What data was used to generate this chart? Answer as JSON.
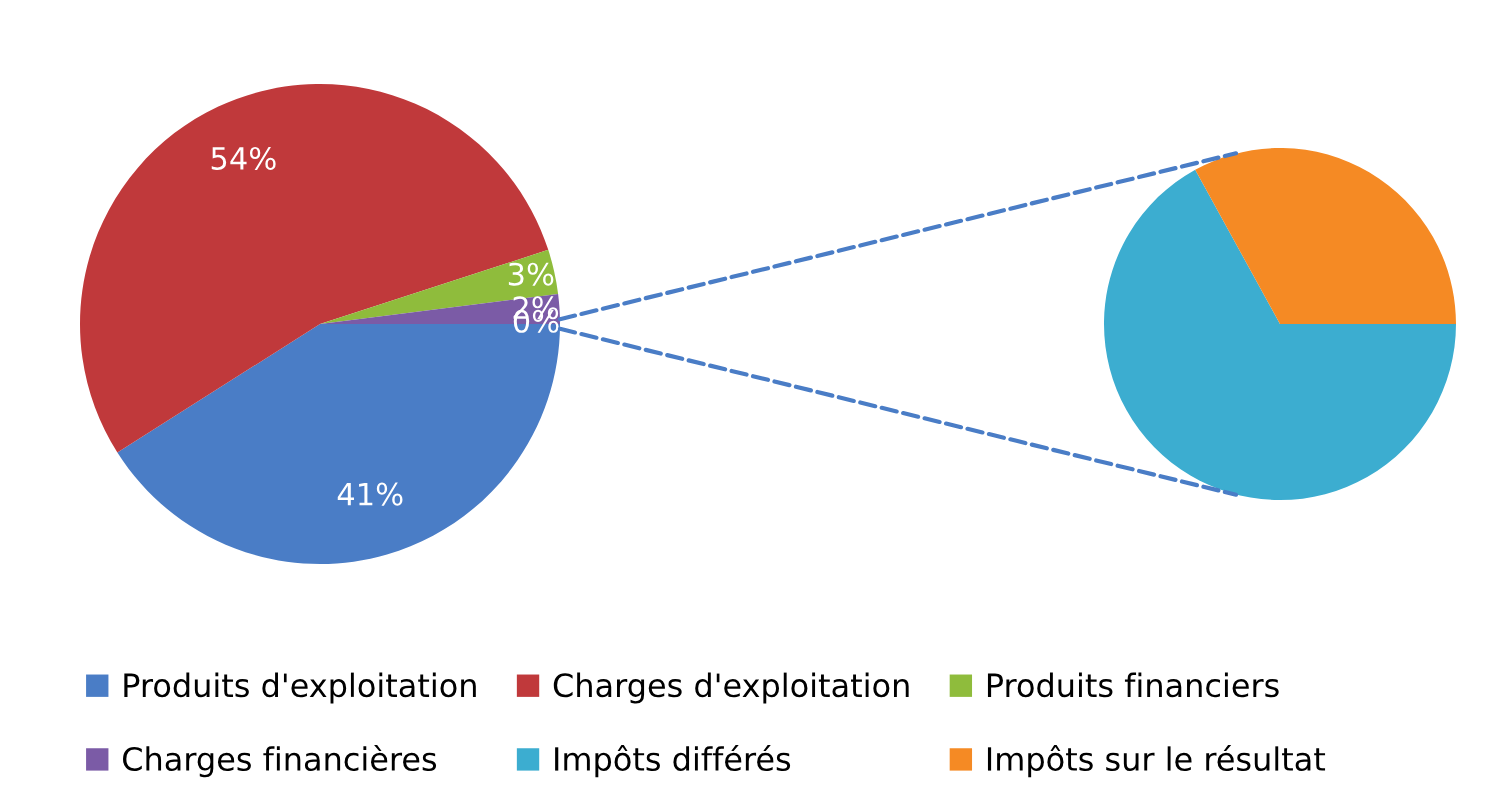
{
  "chart_data": [
    {
      "type": "pie",
      "categories": [
        "Produits d'exploitation",
        "Charges d'exploitation",
        "Produits financiers",
        "Charges financières",
        null
      ],
      "values": [
        41,
        54,
        3,
        2,
        0
      ],
      "colors": [
        "#4a7dc6",
        "#c0393b",
        "#8fbc3c",
        "#7b5ba6",
        "#3cadd0"
      ],
      "value_labels": [
        "41%",
        "54%",
        "3%",
        "2%",
        "0%"
      ],
      "legend": "bottom"
    },
    {
      "type": "pie",
      "categories": [
        "Impôts différés",
        "Impôts sur le résultat"
      ],
      "values": [
        67,
        33
      ],
      "colors": [
        "#3cadd0",
        "#f58a24"
      ],
      "legend": "bottom"
    }
  ]
}
